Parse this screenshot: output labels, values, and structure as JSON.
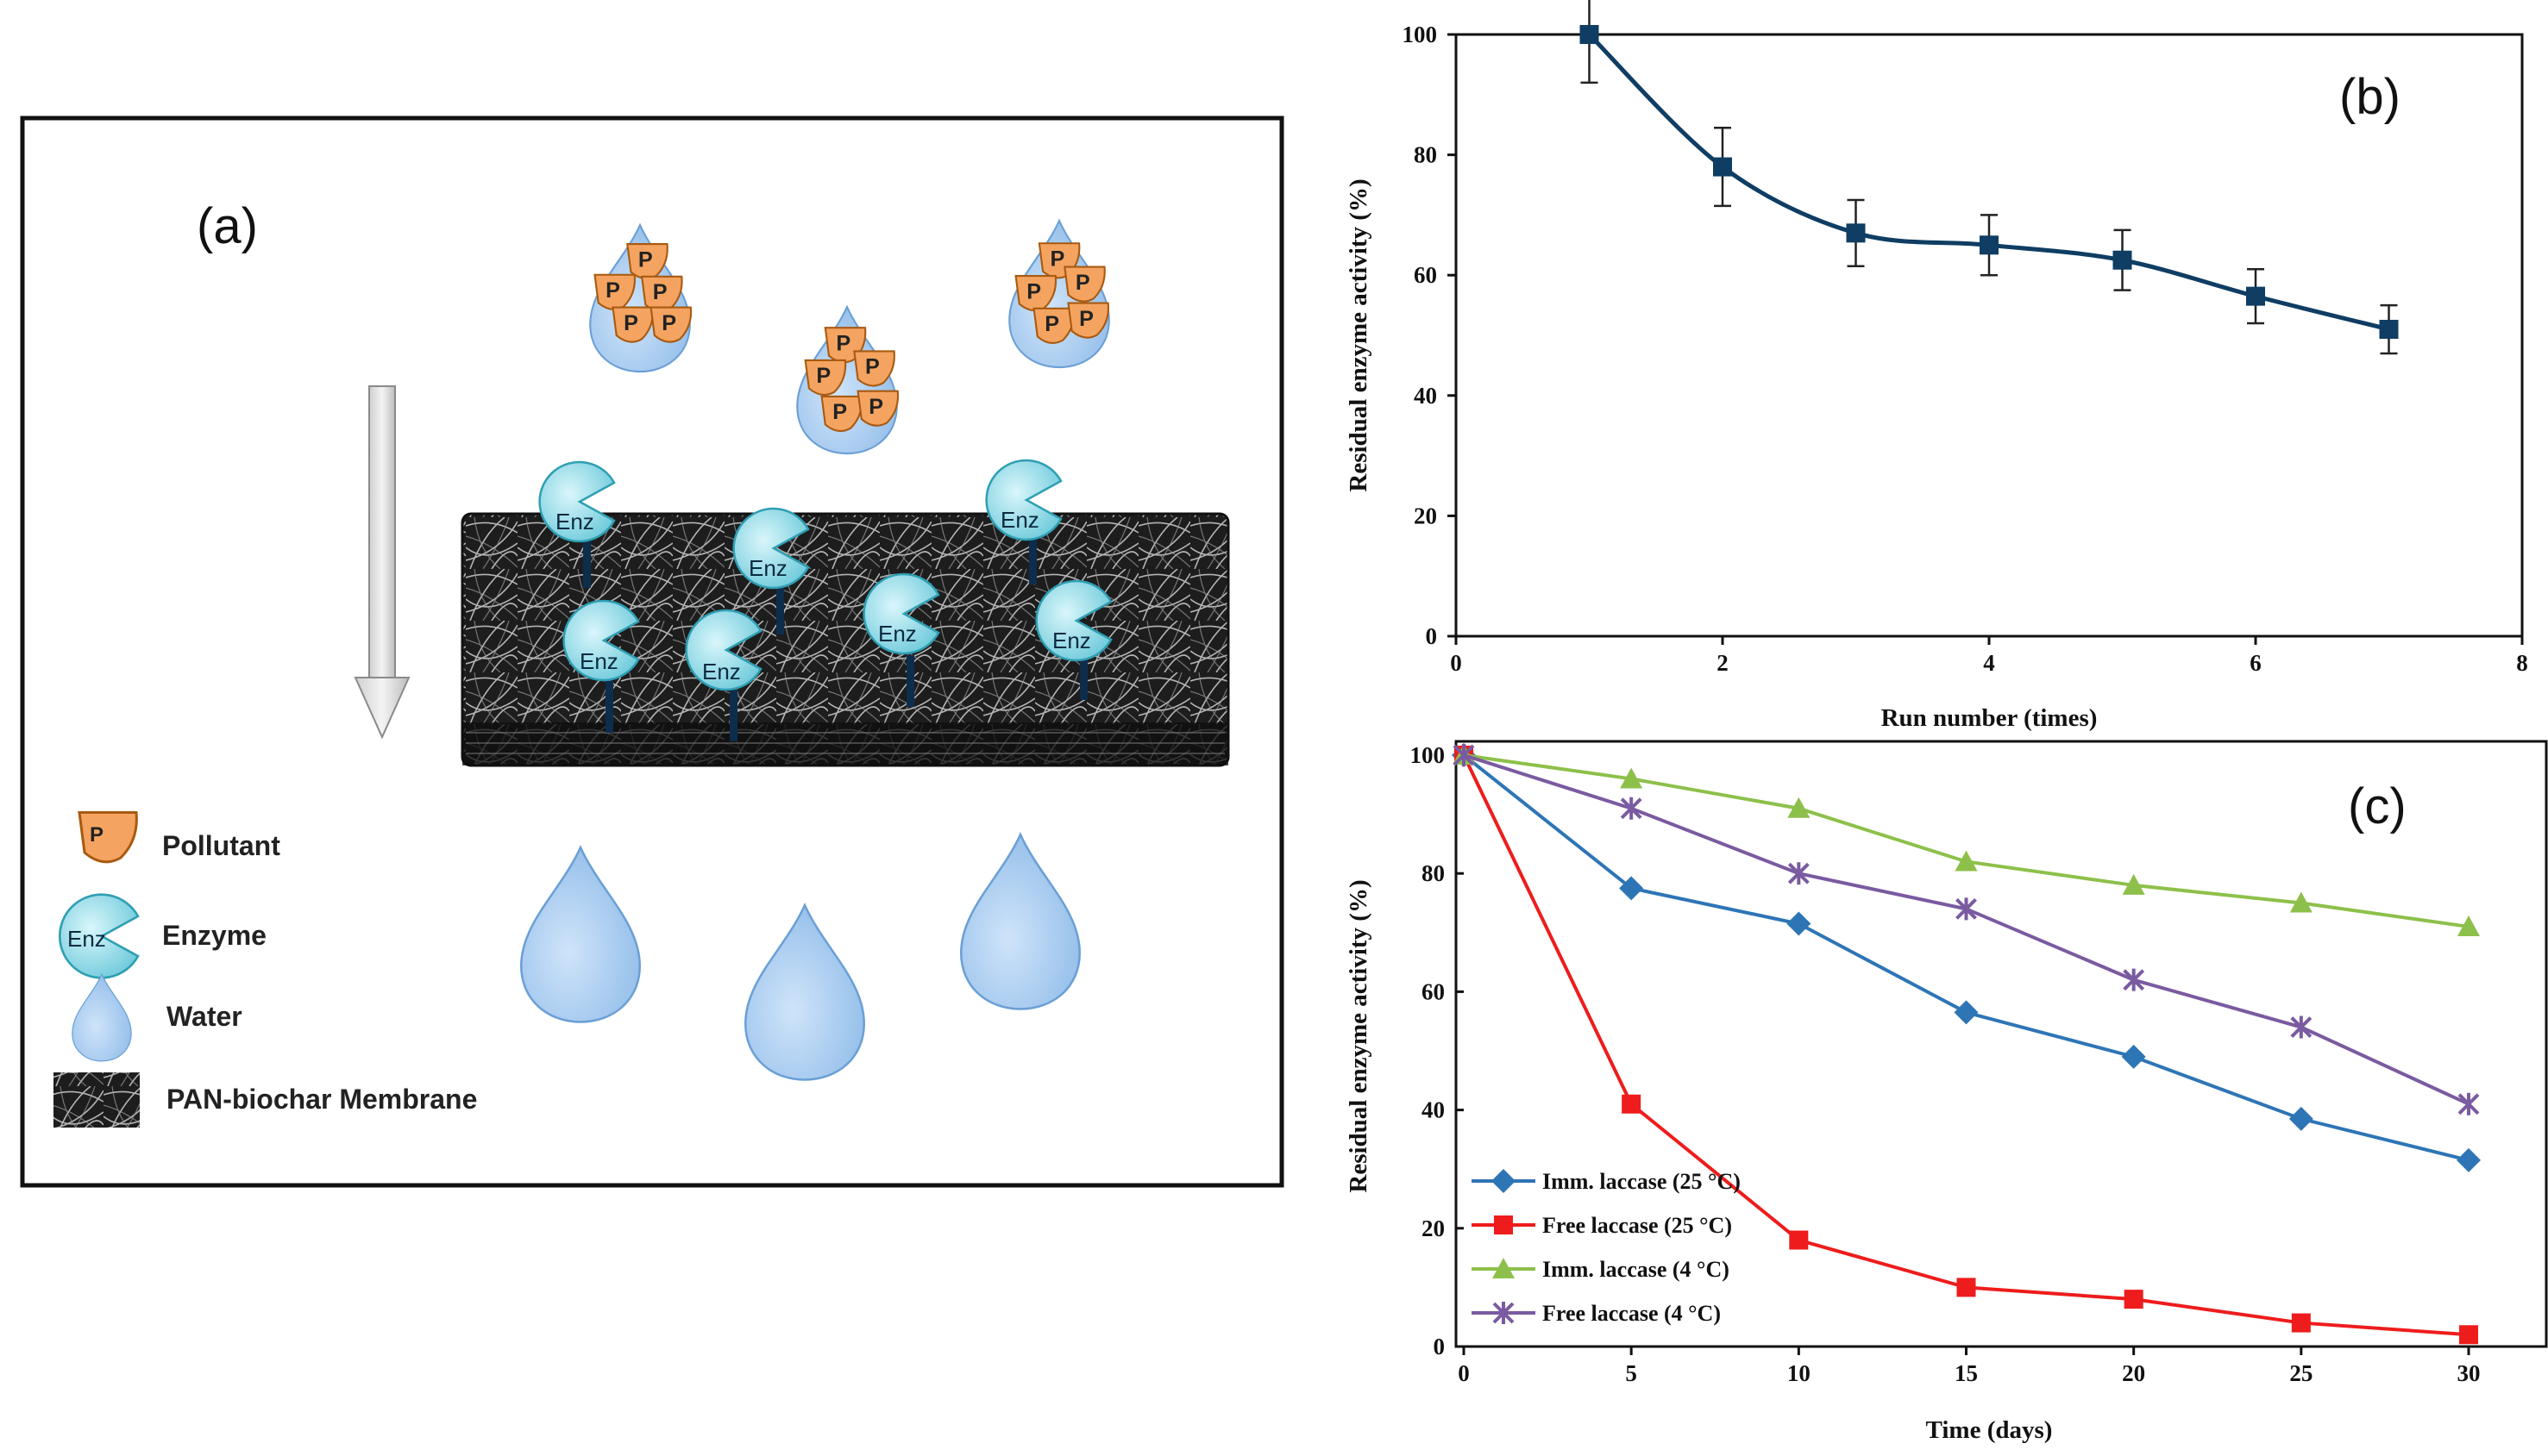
{
  "schematic": {
    "panel_label": "(a)",
    "pollutant_letter": "P",
    "enzyme_label": "Enz",
    "legend": {
      "pollutant": "Pollutant",
      "enzyme": "Enzyme",
      "water": "Water",
      "membrane": "PAN-biochar Membrane"
    },
    "colors": {
      "pollutant": "#f4a460",
      "enzyme": "#9fe3ee",
      "water": "#a9cdf2",
      "membrane": "#2a2a2a"
    }
  },
  "chart_data": [
    {
      "type": "line",
      "panel_label": "(b)",
      "xlabel": "Run number (times)",
      "ylabel": "Residual enzyme activity (%)",
      "xlim": [
        0,
        8
      ],
      "ylim": [
        0,
        100
      ],
      "xticks": [
        0,
        2,
        4,
        6,
        8
      ],
      "yticks": [
        0,
        20,
        40,
        60,
        80,
        100
      ],
      "grid": false,
      "series": [
        {
          "color": "#0f3d63",
          "marker": "square",
          "x": [
            1,
            2,
            3,
            4,
            5,
            6,
            7
          ],
          "y": [
            100,
            78,
            67,
            65,
            62.5,
            56.5,
            51
          ],
          "error": [
            8,
            6.5,
            5.5,
            5,
            5,
            4.5,
            4
          ]
        }
      ]
    },
    {
      "type": "line",
      "panel_label": "(c)",
      "xlabel": "Time (days)",
      "ylabel": "Residual enzyme activity (%)",
      "xlim": [
        0,
        30
      ],
      "ylim": [
        0,
        100
      ],
      "xticks": [
        0,
        5,
        10,
        15,
        20,
        25,
        30
      ],
      "yticks": [
        0,
        20,
        40,
        60,
        80,
        100
      ],
      "grid": false,
      "legend_position": "bottom-left",
      "series": [
        {
          "name": "Imm. laccase (25 °C)",
          "color": "#2e75b6",
          "marker": "diamond",
          "x": [
            0,
            5,
            10,
            15,
            20,
            25,
            30
          ],
          "y": [
            100,
            77.5,
            71.5,
            56.5,
            49,
            38.5,
            31.5
          ]
        },
        {
          "name": "Free laccase (25 °C)",
          "color": "#ee1c1c",
          "marker": "square",
          "x": [
            0,
            5,
            10,
            15,
            20,
            25,
            30
          ],
          "y": [
            100,
            41,
            18,
            10,
            8,
            4,
            2
          ]
        },
        {
          "name": "Imm. laccase (4 °C)",
          "color": "#8dc04a",
          "marker": "triangle",
          "x": [
            0,
            5,
            10,
            15,
            20,
            25,
            30
          ],
          "y": [
            100,
            96,
            91,
            82,
            78,
            75,
            71
          ]
        },
        {
          "name": "Free laccase (4 °C)",
          "color": "#7a5aa0",
          "marker": "star",
          "x": [
            0,
            5,
            10,
            15,
            20,
            25,
            30
          ],
          "y": [
            100,
            91,
            80,
            74,
            62,
            54,
            41
          ]
        }
      ]
    }
  ]
}
